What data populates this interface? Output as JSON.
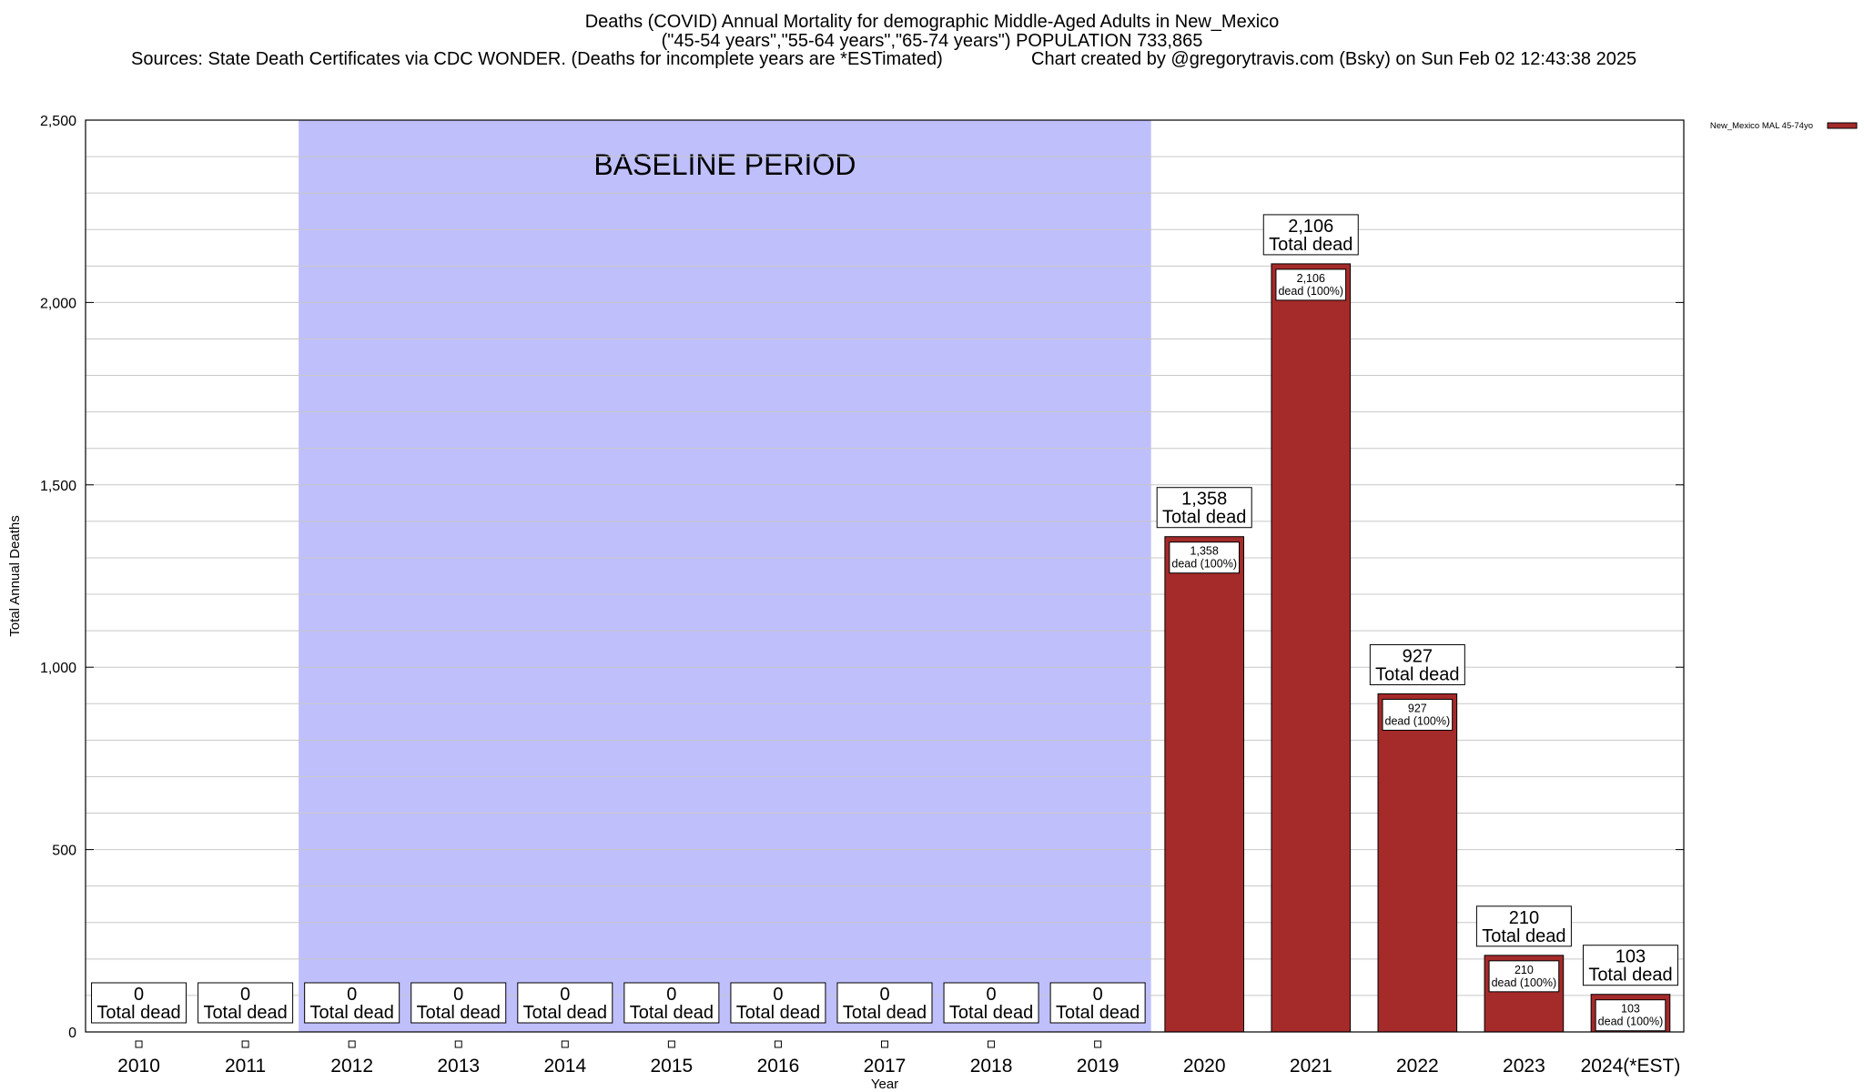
{
  "header": {
    "title": "Deaths (COVID) Annual Mortality for demographic Middle-Aged Adults in New_Mexico",
    "subtitle": "(\"45-54 years\",\"55-64 years\",\"65-74 years\") POPULATION 733,865",
    "sources": "Sources: State Death Certificates via CDC WONDER. (Deaths for incomplete years are *ESTimated)",
    "credit": "Chart created by @gregorytravis.com (Bsky) on Sun Feb 02 12:43:38 2025"
  },
  "chart_data": {
    "type": "bar",
    "title": "Deaths (COVID) Annual Mortality for demographic Middle-Aged Adults in New_Mexico",
    "xlabel": "Year",
    "ylabel": "Total Annual Deaths",
    "ylim": [
      0,
      2500
    ],
    "yticks": [
      0,
      500,
      1000,
      1500,
      2000,
      2500
    ],
    "ytick_labels": [
      "0",
      "500",
      "1,000",
      "1,500",
      "2,000",
      "2,500"
    ],
    "grid": true,
    "categories": [
      "2010",
      "2011",
      "2012",
      "2013",
      "2014",
      "2015",
      "2016",
      "2017",
      "2018",
      "2019",
      "2020",
      "2021",
      "2022",
      "2023",
      "2024(*EST)"
    ],
    "series": [
      {
        "name": "New_Mexico MAL 45-74yo",
        "color": "#a52a2a",
        "values": [
          0,
          0,
          0,
          0,
          0,
          0,
          0,
          0,
          0,
          0,
          1358,
          2106,
          927,
          210,
          103
        ]
      }
    ],
    "total_labels": [
      "0",
      "0",
      "0",
      "0",
      "0",
      "0",
      "0",
      "0",
      "0",
      "0",
      "1,358",
      "2,106",
      "927",
      "210",
      "103"
    ],
    "total_suffix": "Total dead",
    "inner_labels": [
      "",
      "",
      "",
      "",
      "",
      "",
      "",
      "",
      "",
      "",
      "1,358",
      "2,106",
      "927",
      "210",
      "103"
    ],
    "inner_suffix": "dead (100%)",
    "baseline": {
      "label": "BASELINE PERIOD",
      "start": "2012",
      "end": "2019",
      "color": "#bfbffc"
    },
    "legend_position": "top-right"
  }
}
